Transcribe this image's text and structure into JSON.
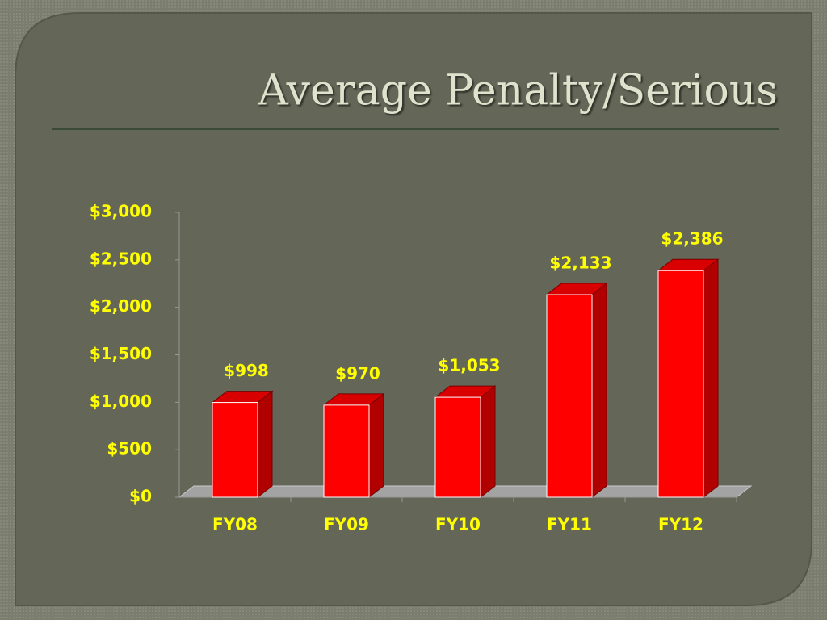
{
  "chart_data": {
    "type": "bar",
    "title": "Average Penalty/Serious",
    "categories": [
      "FY08",
      "FY09",
      "FY10",
      "FY11",
      "FY12"
    ],
    "values": [
      998,
      970,
      1053,
      2133,
      2386
    ],
    "value_labels": [
      "$998",
      "$970",
      "$1,053",
      "$2,133",
      "$2,386"
    ],
    "color": "#ff0000",
    "ylim": [
      0,
      3000
    ],
    "yticks": [
      {
        "value": 0,
        "label": "$0"
      },
      {
        "value": 500,
        "label": "$500"
      },
      {
        "value": 1000,
        "label": "$1,000"
      },
      {
        "value": 1500,
        "label": "$1,500"
      },
      {
        "value": 2000,
        "label": "$2,000"
      },
      {
        "value": 2500,
        "label": "$2,500"
      },
      {
        "value": 3000,
        "label": "$3,000"
      }
    ]
  }
}
